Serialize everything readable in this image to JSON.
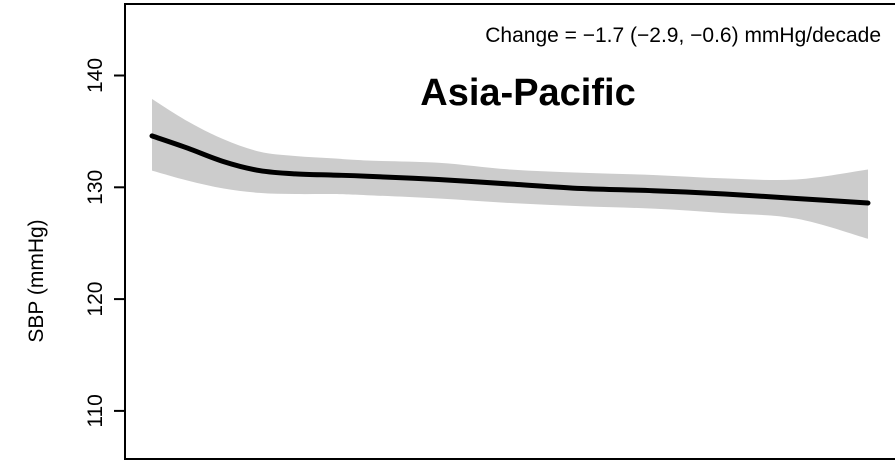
{
  "chart_data": {
    "type": "line",
    "title": "Asia-Pacific",
    "annotation": "Change = −1.7 (−2.9, −0.6) mmHg/decade",
    "xlabel": "",
    "ylabel": "SBP (mmHg)",
    "ylim": [
      105.7,
      146.4
    ],
    "yticks": [
      110,
      120,
      130,
      140
    ],
    "ytick_labels": [
      "110",
      "120",
      "130",
      "140"
    ],
    "xlim": [
      0,
      100
    ],
    "grid": false,
    "legend": "none",
    "series": [
      {
        "x": [
          0,
          5,
          10,
          15,
          20,
          25,
          30,
          40,
          50,
          60,
          70,
          80,
          90,
          100
        ],
        "values": [
          134.6,
          133.5,
          132.3,
          131.5,
          131.2,
          131.1,
          131.0,
          130.7,
          130.3,
          129.9,
          129.7,
          129.4,
          129.0,
          128.6
        ],
        "lower": [
          131.5,
          130.6,
          129.9,
          129.5,
          129.4,
          129.4,
          129.3,
          129.0,
          128.6,
          128.3,
          128.1,
          127.7,
          127.2,
          125.4
        ],
        "upper": [
          137.9,
          135.9,
          134.3,
          133.2,
          132.8,
          132.6,
          132.4,
          132.2,
          131.6,
          131.3,
          131.1,
          130.8,
          130.7,
          131.6
        ]
      }
    ],
    "colors": {
      "line": "#000000",
      "band": "#cccccc",
      "axis": "#000000",
      "background": "#ffffff"
    }
  }
}
